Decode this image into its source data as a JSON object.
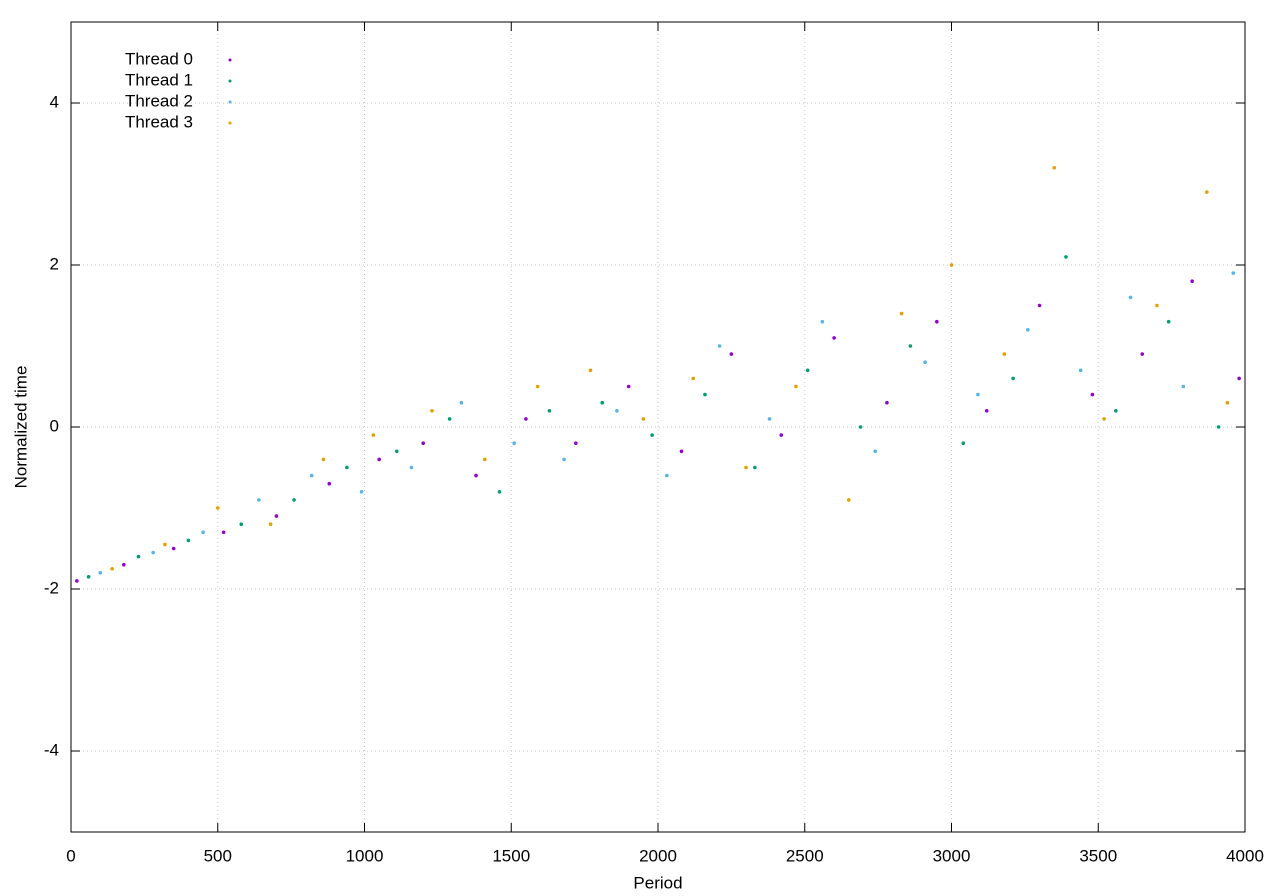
{
  "chart_data": {
    "type": "scatter",
    "x_label": "Period",
    "y_label": "Normalized time",
    "xlim": [
      0,
      4000
    ],
    "ylim": [
      -5,
      5
    ],
    "xticks": [
      0,
      500,
      1000,
      1500,
      2000,
      2500,
      3000,
      3500,
      4000
    ],
    "yticks": [
      -4,
      -2,
      0,
      2,
      4
    ],
    "grid": true,
    "legend": "top-left",
    "series": [
      {
        "name": "Thread 0",
        "color": "#9400d3",
        "x": [
          20,
          180,
          350,
          520,
          700,
          880,
          1050,
          1200,
          1380,
          1550,
          1720,
          1900,
          2080,
          2250,
          2420,
          2600,
          2780,
          2950,
          3120,
          3300,
          3480,
          3650,
          3820,
          3980
        ],
        "values": [
          -1.9,
          -1.7,
          -1.5,
          -1.3,
          -1.1,
          -0.7,
          -0.4,
          -0.2,
          -0.6,
          0.1,
          -0.2,
          0.5,
          -0.3,
          0.9,
          -0.1,
          1.1,
          0.3,
          1.3,
          0.2,
          1.5,
          0.4,
          0.9,
          1.8,
          0.6
        ]
      },
      {
        "name": "Thread 1",
        "color": "#009e73",
        "x": [
          60,
          230,
          400,
          580,
          760,
          940,
          1110,
          1290,
          1460,
          1630,
          1810,
          1980,
          2160,
          2330,
          2510,
          2690,
          2860,
          3040,
          3210,
          3390,
          3560,
          3740,
          3910
        ],
        "values": [
          -1.85,
          -1.6,
          -1.4,
          -1.2,
          -0.9,
          -0.5,
          -0.3,
          0.1,
          -0.8,
          0.2,
          0.3,
          -0.1,
          0.4,
          -0.5,
          0.7,
          0.0,
          1.0,
          -0.2,
          0.6,
          2.1,
          0.2,
          1.3,
          0.0
        ]
      },
      {
        "name": "Thread 2",
        "color": "#56b4e9",
        "x": [
          100,
          280,
          450,
          640,
          820,
          990,
          1160,
          1330,
          1510,
          1680,
          1860,
          2030,
          2210,
          2380,
          2560,
          2740,
          2910,
          3090,
          3260,
          3440,
          3610,
          3790,
          3960
        ],
        "values": [
          -1.8,
          -1.55,
          -1.3,
          -0.9,
          -0.6,
          -0.8,
          -0.5,
          0.3,
          -0.2,
          -0.4,
          0.2,
          -0.6,
          1.0,
          0.1,
          1.3,
          -0.3,
          0.8,
          0.4,
          1.2,
          0.7,
          1.6,
          0.5,
          1.9
        ]
      },
      {
        "name": "Thread 3",
        "color": "#e69f00",
        "x": [
          140,
          320,
          500,
          680,
          860,
          1030,
          1230,
          1410,
          1590,
          1770,
          1950,
          2120,
          2300,
          2470,
          2650,
          2830,
          3000,
          3180,
          3350,
          3520,
          3700,
          3870,
          3940
        ],
        "values": [
          -1.75,
          -1.45,
          -1.0,
          -1.2,
          -0.4,
          -0.1,
          0.2,
          -0.4,
          0.5,
          0.7,
          0.1,
          0.6,
          -0.5,
          0.5,
          -0.9,
          1.4,
          2.0,
          0.9,
          3.2,
          0.1,
          1.5,
          2.9,
          0.3
        ]
      }
    ]
  }
}
